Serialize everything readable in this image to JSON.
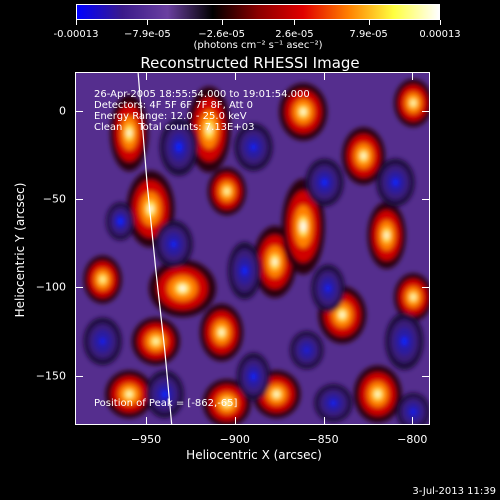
{
  "chart_data": {
    "type": "heatmap",
    "title": "Reconstructed RHESSI Image",
    "xlabel": "Heliocentric X (arcsec)",
    "ylabel": "Heliocentric Y (arcsec)",
    "xlim": [
      -990,
      -790
    ],
    "ylim": [
      -178,
      22
    ],
    "x_ticks": [
      -950,
      -900,
      -850,
      -800
    ],
    "y_ticks": [
      0,
      -50,
      -100,
      -150
    ],
    "colorbar": {
      "min": -0.00013,
      "max": 0.00013,
      "tick_values": [
        -0.00013,
        -7.9e-05,
        -2.6e-05,
        2.6e-05,
        7.9e-05,
        0.00013
      ],
      "tick_labels": [
        "-0.00013",
        "−7.9e-05",
        "−2.6e-05",
        "2.6e-05",
        "7.9e-05",
        "0.00013"
      ],
      "units": "(photons cm⁻² s⁻¹ asec⁻²)",
      "colors": [
        "#0000ff",
        "#3a1a8a",
        "#6a3fa0",
        "#000000",
        "#8a0000",
        "#e00000",
        "#ff8000",
        "#ffff40",
        "#ffffff"
      ]
    },
    "annotations": {
      "time": "26-Apr-2005 18:55:54.000 to 19:01:54.000",
      "detectors": "Detectors: 4F 5F 6F 7F 8F, Att 0",
      "energy": "Energy Range: 12.0 - 25.0 keV",
      "clean": "Clean     Total counts: 7.13E+03",
      "peak": "Position of Peak = [-862,-65]"
    },
    "limb_color": "#ffffff",
    "blobs": [
      {
        "x": -960,
        "y": -12,
        "amp": 1.0,
        "rx": 8,
        "ry": 16
      },
      {
        "x": -948,
        "y": -55,
        "amp": 1.0,
        "rx": 10,
        "ry": 16
      },
      {
        "x": -930,
        "y": -100,
        "amp": 1.1,
        "rx": 14,
        "ry": 12
      },
      {
        "x": -945,
        "y": -130,
        "amp": 0.8,
        "rx": 10,
        "ry": 10
      },
      {
        "x": -960,
        "y": -160,
        "amp": 0.9,
        "rx": 10,
        "ry": 10
      },
      {
        "x": -915,
        "y": -10,
        "amp": 0.9,
        "rx": 9,
        "ry": 18
      },
      {
        "x": -905,
        "y": -45,
        "amp": 0.8,
        "rx": 8,
        "ry": 10
      },
      {
        "x": -908,
        "y": -125,
        "amp": 1.0,
        "rx": 9,
        "ry": 12
      },
      {
        "x": -905,
        "y": -165,
        "amp": 0.9,
        "rx": 10,
        "ry": 10
      },
      {
        "x": -878,
        "y": -85,
        "amp": 1.0,
        "rx": 9,
        "ry": 15
      },
      {
        "x": -877,
        "y": -160,
        "amp": 1.0,
        "rx": 10,
        "ry": 10
      },
      {
        "x": -862,
        "y": -65,
        "amp": 1.3,
        "rx": 9,
        "ry": 20
      },
      {
        "x": -862,
        "y": 0,
        "amp": 1.0,
        "rx": 10,
        "ry": 12
      },
      {
        "x": -840,
        "y": -115,
        "amp": 1.0,
        "rx": 10,
        "ry": 12
      },
      {
        "x": -828,
        "y": -25,
        "amp": 1.0,
        "rx": 9,
        "ry": 12
      },
      {
        "x": -815,
        "y": -70,
        "amp": 1.0,
        "rx": 8,
        "ry": 14
      },
      {
        "x": -820,
        "y": -160,
        "amp": 0.9,
        "rx": 10,
        "ry": 12
      },
      {
        "x": -800,
        "y": 5,
        "amp": 0.9,
        "rx": 8,
        "ry": 10
      },
      {
        "x": -800,
        "y": -105,
        "amp": 0.9,
        "rx": 8,
        "ry": 10
      },
      {
        "x": -975,
        "y": -95,
        "amp": 0.7,
        "rx": 8,
        "ry": 10
      },
      {
        "x": -965,
        "y": -62,
        "amp": -1.2,
        "rx": 6,
        "ry": 8
      },
      {
        "x": -932,
        "y": -20,
        "amp": -1.0,
        "rx": 8,
        "ry": 12
      },
      {
        "x": -935,
        "y": -75,
        "amp": -0.8,
        "rx": 8,
        "ry": 10
      },
      {
        "x": -940,
        "y": -160,
        "amp": -0.9,
        "rx": 8,
        "ry": 10
      },
      {
        "x": -895,
        "y": -90,
        "amp": -0.9,
        "rx": 7,
        "ry": 12
      },
      {
        "x": -890,
        "y": -20,
        "amp": -0.8,
        "rx": 8,
        "ry": 10
      },
      {
        "x": -890,
        "y": -150,
        "amp": -0.9,
        "rx": 7,
        "ry": 10
      },
      {
        "x": -850,
        "y": -40,
        "amp": -0.9,
        "rx": 8,
        "ry": 10
      },
      {
        "x": -848,
        "y": -100,
        "amp": -0.8,
        "rx": 7,
        "ry": 10
      },
      {
        "x": -845,
        "y": -165,
        "amp": -0.8,
        "rx": 8,
        "ry": 8
      },
      {
        "x": -810,
        "y": -40,
        "amp": -0.9,
        "rx": 8,
        "ry": 10
      },
      {
        "x": -805,
        "y": -130,
        "amp": -0.9,
        "rx": 8,
        "ry": 12
      },
      {
        "x": -800,
        "y": -170,
        "amp": -0.8,
        "rx": 7,
        "ry": 8
      },
      {
        "x": -860,
        "y": -135,
        "amp": -0.6,
        "rx": 7,
        "ry": 8
      },
      {
        "x": -975,
        "y": -130,
        "amp": -0.7,
        "rx": 8,
        "ry": 10
      }
    ]
  },
  "timestamp": "3-Jul-2013 11:39"
}
